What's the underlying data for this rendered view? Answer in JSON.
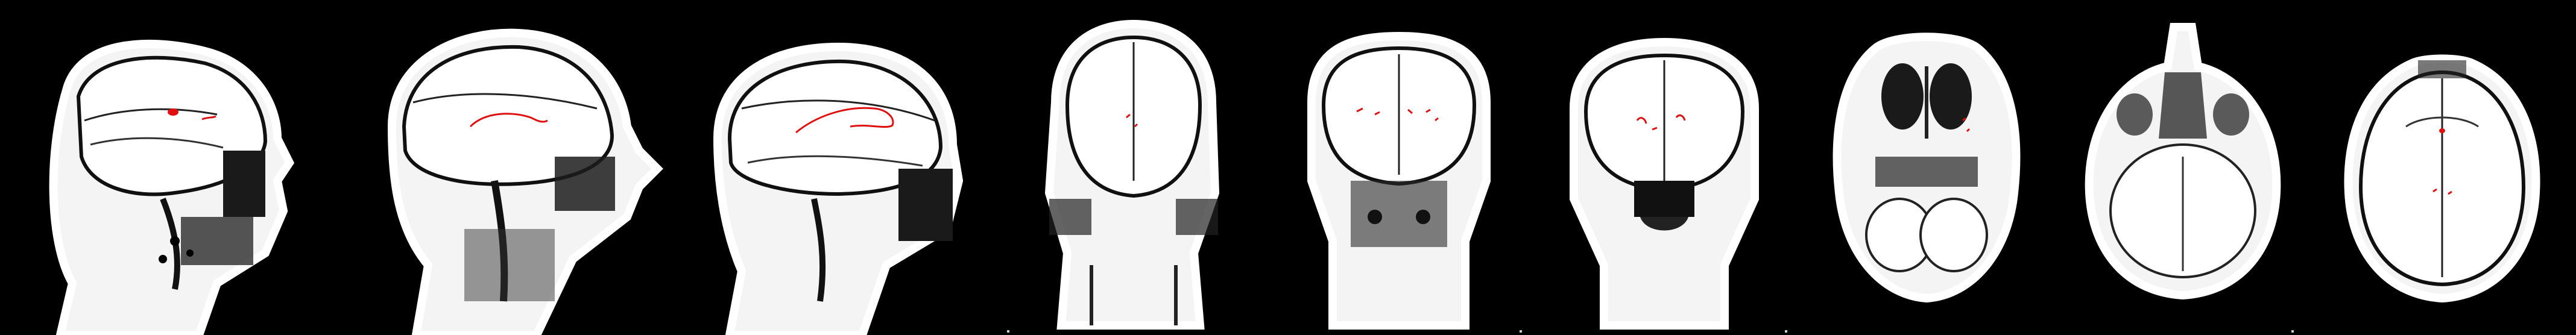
{
  "figure": {
    "background": "#000000",
    "tissue_color": "#ffffff",
    "overlay_color": "#e01010",
    "panels": [
      {
        "view": "sagittal",
        "overlay": "round-spot-and-short-trace"
      },
      {
        "view": "sagittal",
        "overlay": "curved-trace"
      },
      {
        "view": "sagittal",
        "overlay": "long-curved-trace"
      },
      {
        "view": "coronal",
        "overlay": "small-marks"
      },
      {
        "view": "coronal",
        "overlay": "scattered-marks"
      },
      {
        "view": "coronal",
        "overlay": "scattered-marks"
      },
      {
        "view": "axial",
        "overlay": "small-marks"
      },
      {
        "view": "axial",
        "overlay": "none"
      },
      {
        "view": "axial",
        "overlay": "small-marks"
      }
    ]
  }
}
